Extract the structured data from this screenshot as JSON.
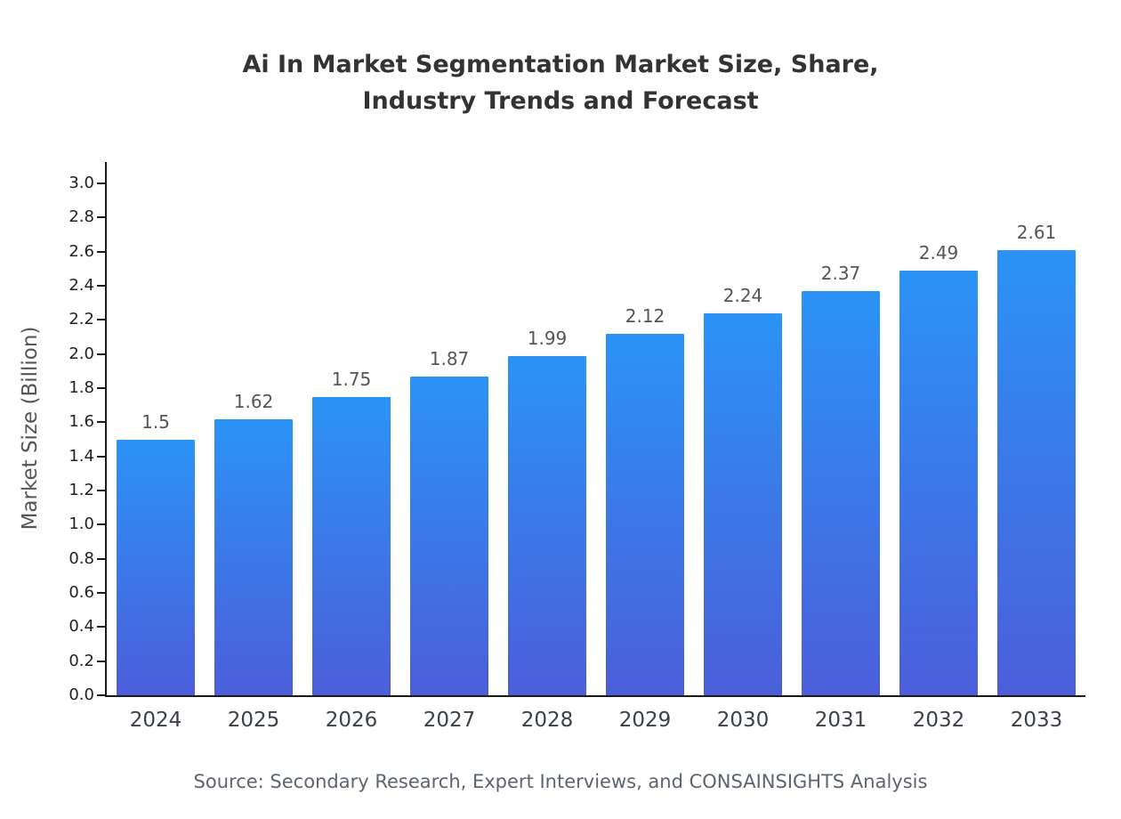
{
  "title": {
    "line1": "Ai In Market Segmentation Market Size, Share,",
    "line2": "Industry Trends and Forecast"
  },
  "source": "Source: Secondary Research, Expert Interviews, and CONSAINSIGHTS Analysis",
  "chart_data": {
    "type": "bar",
    "title": "Ai In Market Segmentation Market Size, Share, Industry Trends and Forecast",
    "categories": [
      "2024",
      "2025",
      "2026",
      "2027",
      "2028",
      "2029",
      "2030",
      "2031",
      "2032",
      "2033"
    ],
    "values": [
      1.5,
      1.62,
      1.75,
      1.87,
      1.99,
      2.12,
      2.24,
      2.37,
      2.49,
      2.61
    ],
    "value_labels": [
      "1.5",
      "1.62",
      "1.75",
      "1.87",
      "1.99",
      "2.12",
      "2.24",
      "2.37",
      "2.49",
      "2.61"
    ],
    "xlabel": "",
    "ylabel": "Market Size (Billion)",
    "ylim": [
      0.0,
      3.0
    ],
    "ytick_step": 0.2,
    "grid": false,
    "legend": "none",
    "bar_gradient_top": "#2B93F6",
    "bar_gradient_bottom": "#4C5ED9",
    "axis_color": "#1a1a1a"
  }
}
